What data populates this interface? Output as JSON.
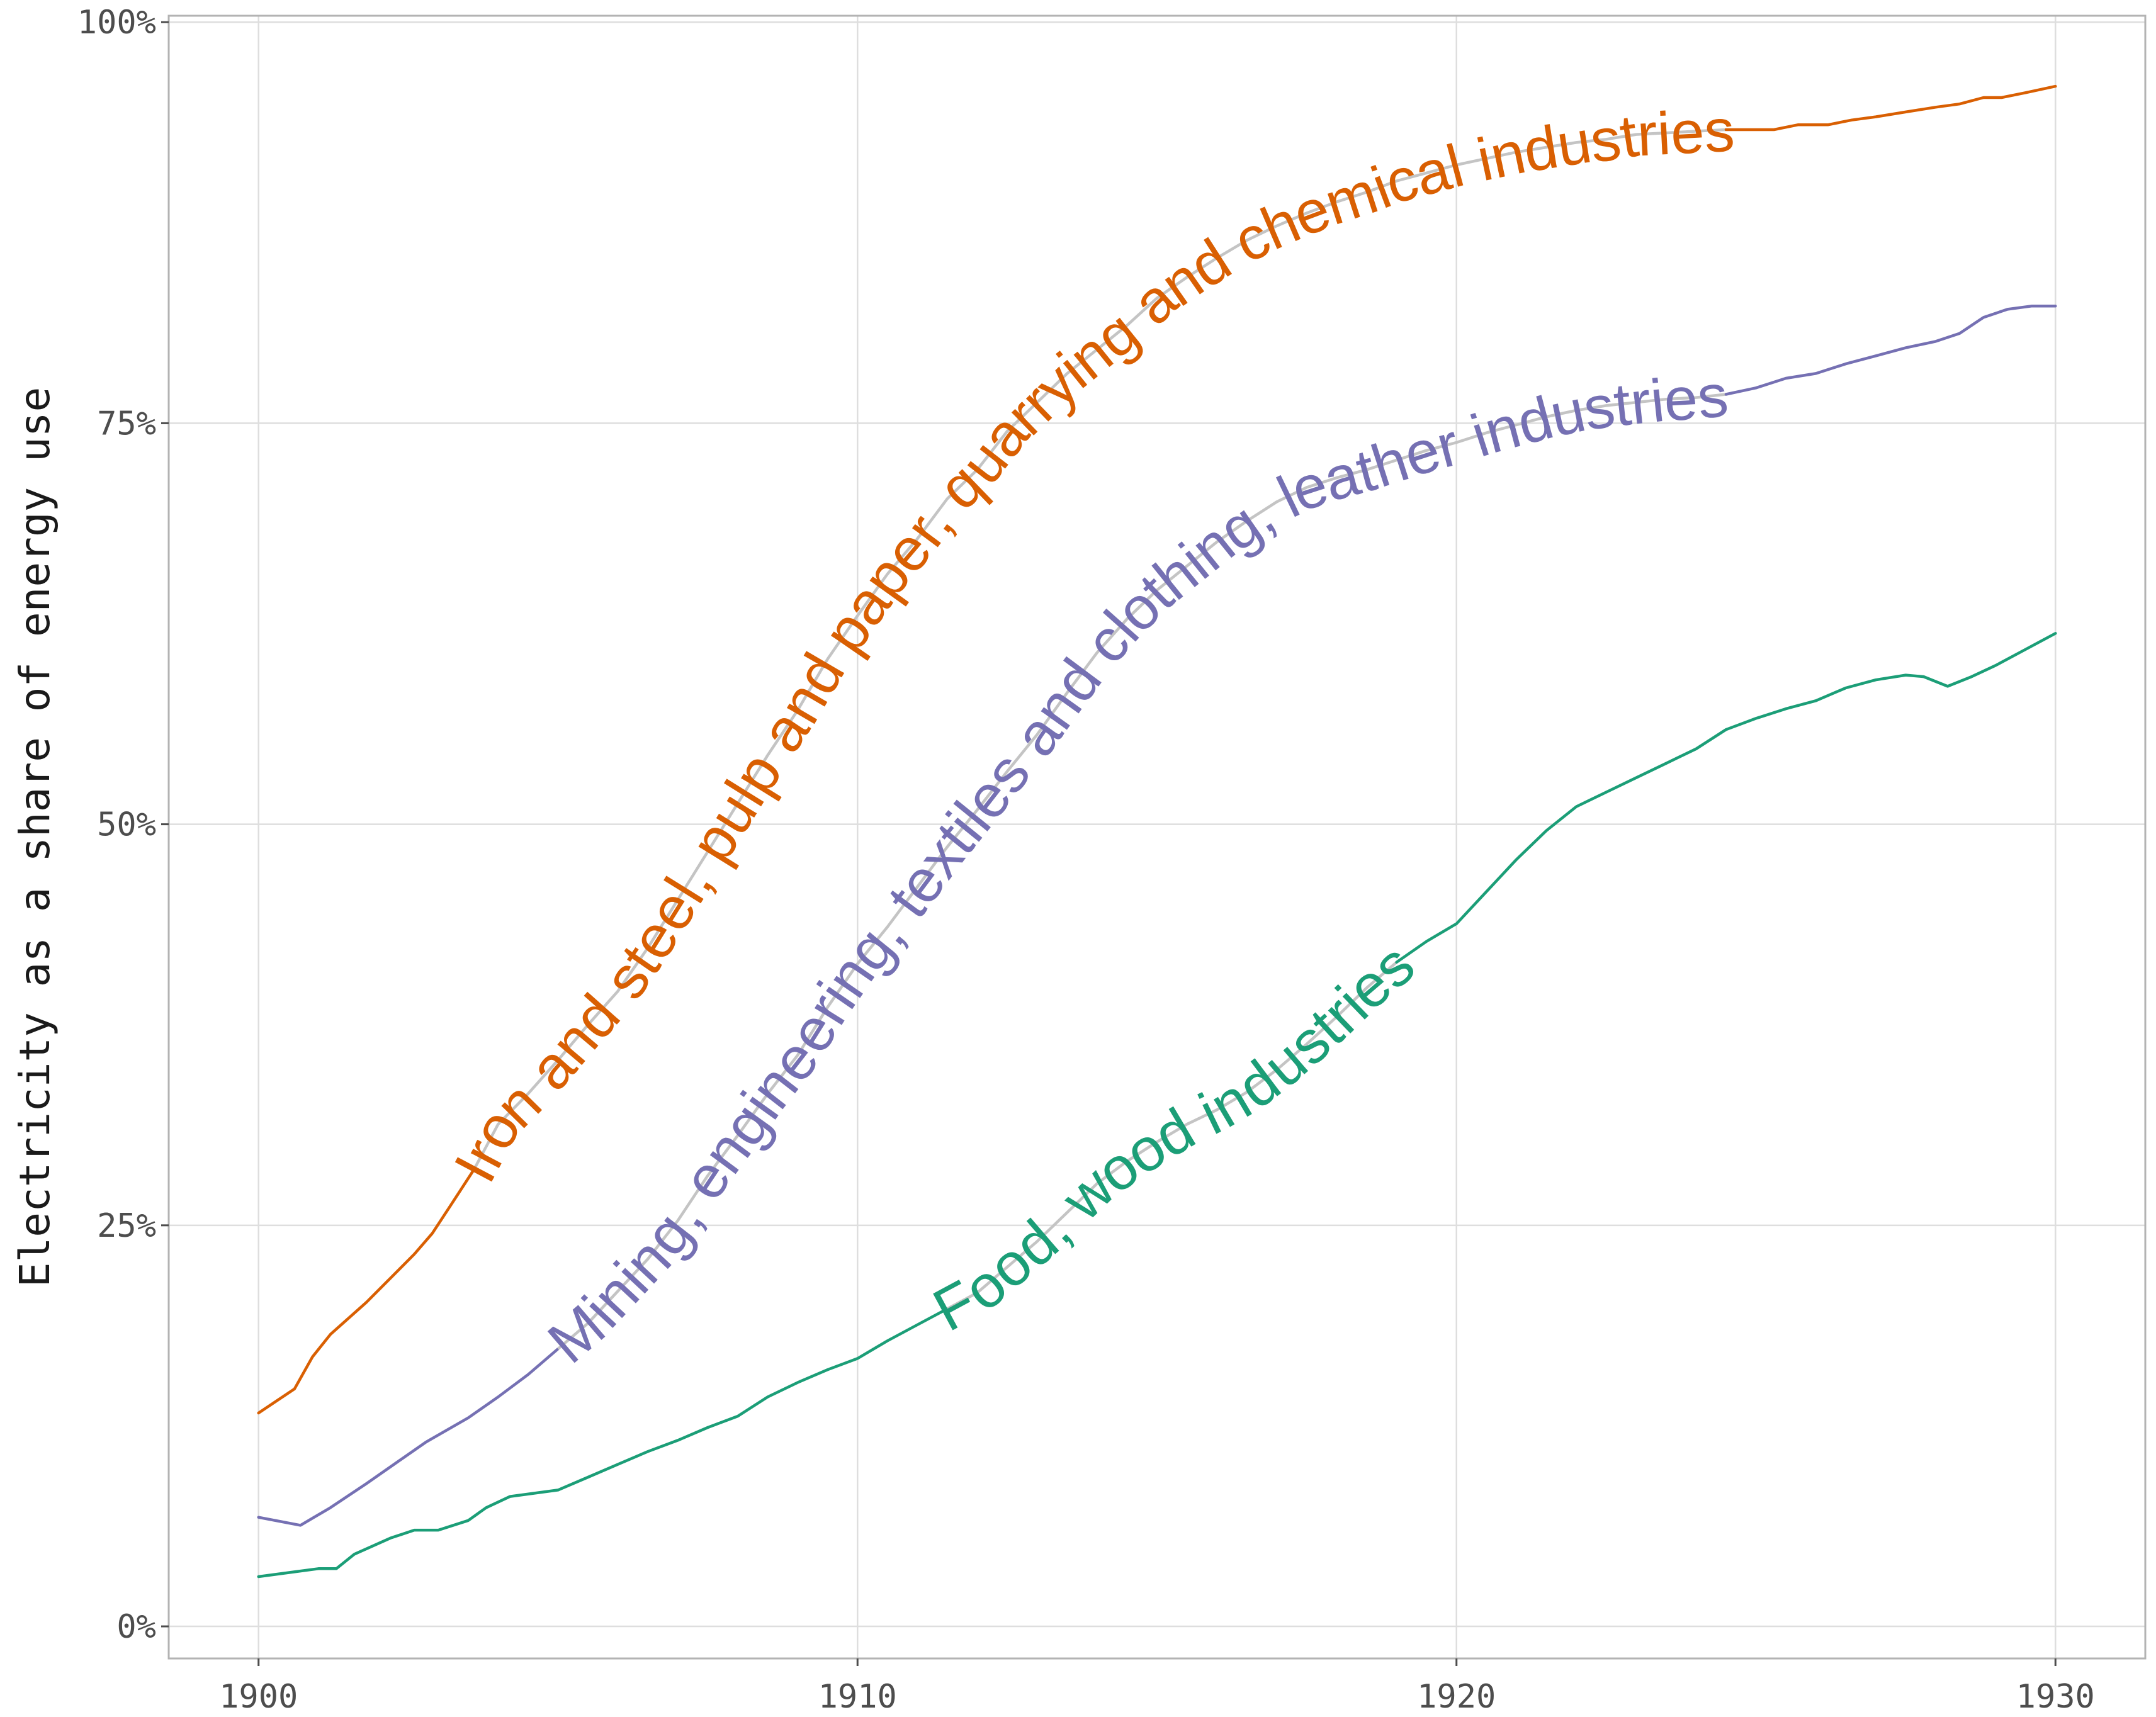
{
  "chart_data": {
    "type": "line",
    "title": "",
    "xlabel": "",
    "ylabel": "Electricity as a share of energy use",
    "xlim": [
      1898.5,
      1931.5
    ],
    "ylim": [
      -2,
      100.4
    ],
    "x_ticks": [
      1900,
      1910,
      1920,
      1930
    ],
    "y_ticks": [
      0,
      25,
      50,
      75,
      100
    ],
    "y_tick_labels": [
      "0%",
      "25%",
      "50%",
      "75%",
      "100%"
    ],
    "grid": true,
    "legend": "none",
    "series": [
      {
        "name": "Iron and steel, pulp and paper, quarrying and chemical industries",
        "color": "#d95f02",
        "points": [
          [
            1900,
            13.3
          ],
          [
            1900.6,
            14.8
          ],
          [
            1900.9,
            16.8
          ],
          [
            1901.2,
            18.2
          ],
          [
            1901.8,
            20.2
          ],
          [
            1902.2,
            21.7
          ],
          [
            1902.6,
            23.2
          ],
          [
            1902.9,
            24.5
          ],
          [
            1903.2,
            26.2
          ],
          [
            1903.6,
            28.5
          ],
          [
            1904.0,
            31.3
          ],
          [
            1904.5,
            33.2
          ],
          [
            1905.0,
            35.3
          ],
          [
            1905.5,
            37.5
          ],
          [
            1906.0,
            39.6
          ],
          [
            1906.5,
            42.3
          ],
          [
            1907.0,
            45.3
          ],
          [
            1907.5,
            48.3
          ],
          [
            1908.0,
            51.3
          ],
          [
            1908.5,
            54.3
          ],
          [
            1909.0,
            57.1
          ],
          [
            1909.5,
            60.3
          ],
          [
            1910.0,
            63.0
          ],
          [
            1910.5,
            65.6
          ],
          [
            1911.0,
            67.8
          ],
          [
            1911.5,
            70.3
          ],
          [
            1912.0,
            72.1
          ],
          [
            1912.5,
            74.5
          ],
          [
            1913.0,
            76.3
          ],
          [
            1913.5,
            78.1
          ],
          [
            1914.0,
            79.6
          ],
          [
            1914.5,
            81.1
          ],
          [
            1915.0,
            82.8
          ],
          [
            1915.5,
            84.1
          ],
          [
            1916.0,
            85.3
          ],
          [
            1916.5,
            86.4
          ],
          [
            1917.0,
            87.3
          ],
          [
            1917.5,
            88.1
          ],
          [
            1918.0,
            88.8
          ],
          [
            1918.5,
            89.4
          ],
          [
            1919.0,
            90.1
          ],
          [
            1919.5,
            90.6
          ],
          [
            1920.0,
            91.1
          ],
          [
            1920.5,
            91.5
          ],
          [
            1921.0,
            91.9
          ],
          [
            1921.5,
            92.2
          ],
          [
            1922.0,
            92.5
          ],
          [
            1922.5,
            92.7
          ],
          [
            1923.0,
            93.0
          ],
          [
            1923.5,
            93.1
          ],
          [
            1924.0,
            93.2
          ],
          [
            1924.5,
            93.3
          ],
          [
            1925.0,
            93.3
          ],
          [
            1925.3,
            93.3
          ],
          [
            1925.7,
            93.6
          ],
          [
            1926.2,
            93.6
          ],
          [
            1926.6,
            93.9
          ],
          [
            1927.0,
            94.1
          ],
          [
            1927.5,
            94.4
          ],
          [
            1928.0,
            94.7
          ],
          [
            1928.4,
            94.9
          ],
          [
            1928.8,
            95.3
          ],
          [
            1929.1,
            95.3
          ],
          [
            1929.5,
            95.6
          ],
          [
            1930.0,
            96.0
          ]
        ]
      },
      {
        "name": "Mining, engineering, textiles and clothing, leather industries",
        "color": "#7570b3",
        "points": [
          [
            1900,
            6.8
          ],
          [
            1900.7,
            6.3
          ],
          [
            1901.2,
            7.4
          ],
          [
            1901.8,
            8.9
          ],
          [
            1902.3,
            10.2
          ],
          [
            1902.8,
            11.5
          ],
          [
            1903.5,
            13.0
          ],
          [
            1904.0,
            14.3
          ],
          [
            1904.5,
            15.7
          ],
          [
            1905.0,
            17.3
          ],
          [
            1905.5,
            18.9
          ],
          [
            1906.0,
            20.9
          ],
          [
            1906.5,
            22.9
          ],
          [
            1907.0,
            25.3
          ],
          [
            1907.5,
            28.1
          ],
          [
            1908.0,
            30.6
          ],
          [
            1908.5,
            33.2
          ],
          [
            1909.0,
            35.6
          ],
          [
            1909.5,
            38.6
          ],
          [
            1910.0,
            41.3
          ],
          [
            1910.5,
            43.6
          ],
          [
            1911.0,
            46.1
          ],
          [
            1911.5,
            48.6
          ],
          [
            1912.0,
            50.9
          ],
          [
            1912.5,
            53.3
          ],
          [
            1913.0,
            55.6
          ],
          [
            1913.5,
            58.2
          ],
          [
            1914.0,
            60.7
          ],
          [
            1914.5,
            62.8
          ],
          [
            1915.0,
            64.6
          ],
          [
            1915.5,
            66.1
          ],
          [
            1916.0,
            67.6
          ],
          [
            1916.5,
            68.9
          ],
          [
            1917.0,
            70.1
          ],
          [
            1917.5,
            71.0
          ],
          [
            1918.0,
            71.6
          ],
          [
            1918.5,
            72.1
          ],
          [
            1919.0,
            72.7
          ],
          [
            1919.5,
            73.3
          ],
          [
            1920.0,
            73.8
          ],
          [
            1920.5,
            74.4
          ],
          [
            1921.0,
            74.9
          ],
          [
            1921.5,
            75.4
          ],
          [
            1922.0,
            75.8
          ],
          [
            1922.5,
            76.1
          ],
          [
            1923.0,
            76.3
          ],
          [
            1923.5,
            76.5
          ],
          [
            1924.0,
            76.6
          ],
          [
            1924.5,
            76.8
          ],
          [
            1925.0,
            77.2
          ],
          [
            1925.5,
            77.8
          ],
          [
            1926.0,
            78.1
          ],
          [
            1926.5,
            78.7
          ],
          [
            1927.0,
            79.2
          ],
          [
            1927.5,
            79.7
          ],
          [
            1928.0,
            80.1
          ],
          [
            1928.4,
            80.6
          ],
          [
            1928.8,
            81.6
          ],
          [
            1929.2,
            82.1
          ],
          [
            1929.6,
            82.3
          ],
          [
            1930.0,
            82.3
          ]
        ]
      },
      {
        "name": "Food, wood industries",
        "color": "#1b9e77",
        "points": [
          [
            1900,
            3.1
          ],
          [
            1900.6,
            3.4
          ],
          [
            1901.0,
            3.6
          ],
          [
            1901.3,
            3.6
          ],
          [
            1901.6,
            4.5
          ],
          [
            1902.2,
            5.5
          ],
          [
            1902.6,
            6.0
          ],
          [
            1903.0,
            6.0
          ],
          [
            1903.5,
            6.6
          ],
          [
            1903.8,
            7.4
          ],
          [
            1904.2,
            8.1
          ],
          [
            1905.0,
            8.5
          ],
          [
            1905.5,
            9.3
          ],
          [
            1906.0,
            10.1
          ],
          [
            1906.5,
            10.9
          ],
          [
            1907.0,
            11.6
          ],
          [
            1907.5,
            12.4
          ],
          [
            1908.0,
            13.1
          ],
          [
            1908.5,
            14.3
          ],
          [
            1909.0,
            15.2
          ],
          [
            1909.5,
            16.0
          ],
          [
            1910.0,
            16.7
          ],
          [
            1910.5,
            17.8
          ],
          [
            1911.0,
            18.8
          ],
          [
            1911.5,
            19.8
          ],
          [
            1912.0,
            20.8
          ],
          [
            1912.5,
            22.4
          ],
          [
            1913.0,
            24.0
          ],
          [
            1913.5,
            25.8
          ],
          [
            1914.0,
            27.6
          ],
          [
            1914.5,
            29.0
          ],
          [
            1915.0,
            30.2
          ],
          [
            1915.5,
            31.3
          ],
          [
            1916.0,
            32.2
          ],
          [
            1916.5,
            33.3
          ],
          [
            1917.0,
            34.7
          ],
          [
            1917.5,
            36.3
          ],
          [
            1918.0,
            38.0
          ],
          [
            1918.5,
            39.8
          ],
          [
            1919.0,
            41.4
          ],
          [
            1919.5,
            42.7
          ],
          [
            1920.0,
            43.8
          ],
          [
            1920.5,
            45.8
          ],
          [
            1921.0,
            47.8
          ],
          [
            1921.5,
            49.6
          ],
          [
            1922.0,
            51.1
          ],
          [
            1922.5,
            52.0
          ],
          [
            1923.0,
            52.9
          ],
          [
            1923.5,
            53.8
          ],
          [
            1924.0,
            54.7
          ],
          [
            1924.5,
            55.9
          ],
          [
            1925.0,
            56.6
          ],
          [
            1925.5,
            57.2
          ],
          [
            1926.0,
            57.7
          ],
          [
            1926.5,
            58.5
          ],
          [
            1927.0,
            59.0
          ],
          [
            1927.5,
            59.3
          ],
          [
            1927.8,
            59.2
          ],
          [
            1928.2,
            58.6
          ],
          [
            1928.6,
            59.2
          ],
          [
            1929.0,
            59.9
          ],
          [
            1929.5,
            60.9
          ],
          [
            1930.0,
            61.9
          ]
        ]
      }
    ],
    "line_labels": [
      {
        "text": "Iron and steel, pulp and paper, quarrying and chemical industries",
        "series": 0,
        "x_start": 1903.6,
        "x_end": 1924.5
      },
      {
        "text": "Mining, engineering, textiles and clothing, leather industries",
        "series": 1,
        "x_start": 1905.0,
        "x_end": 1924.5
      },
      {
        "text": "Food, wood industries",
        "series": 2,
        "x_start": 1911.5,
        "x_end": 1919.0
      }
    ]
  }
}
